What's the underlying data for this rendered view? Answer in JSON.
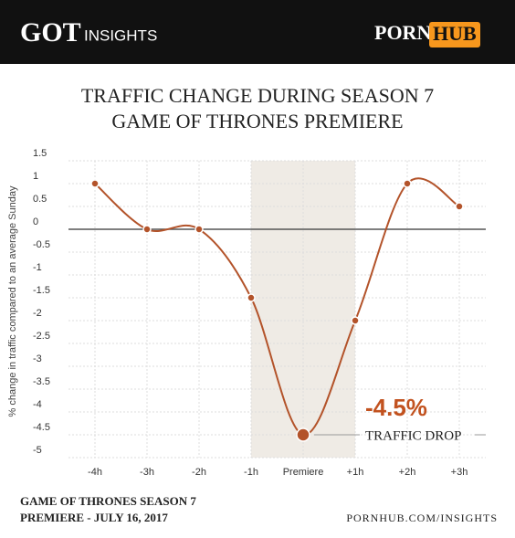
{
  "header": {
    "left_logo": "GOT",
    "left_text": "INSIGHTS",
    "right_logo_a": "PORN",
    "right_logo_b": "HUB"
  },
  "chart_data": {
    "type": "line",
    "title_line1": "TRAFFIC CHANGE DURING SEASON 7",
    "title_line2": "GAME OF THRONES PREMIERE",
    "y_label": "% change in traffic compared to an average Sunday",
    "categories": [
      "-4h",
      "-3h",
      "-2h",
      "-1h",
      "Premiere",
      "+1h",
      "+2h",
      "+3h"
    ],
    "values": [
      1,
      0,
      0,
      -1.5,
      -4.5,
      -2,
      1,
      0.5
    ],
    "value_labels": [
      null,
      null,
      null,
      null,
      "-4.5%",
      null,
      null,
      null
    ],
    "annotation": "TRAFFIC DROP",
    "color": "#b3532a",
    "label_color": "#c2521f",
    "ylim": [
      -5,
      1.5
    ],
    "yticks": [
      1.5,
      1,
      0.5,
      0,
      -0.5,
      -1,
      -1.5,
      -2,
      -2.5,
      -3,
      -3.5,
      -4,
      -4.5,
      -5
    ],
    "grid": true
  },
  "footer": {
    "line1": "GAME OF THRONES SEASON 7",
    "line2": "PREMIERE - JULY 16, 2017",
    "source": "PORNHUB.COM/INSIGHTS"
  }
}
